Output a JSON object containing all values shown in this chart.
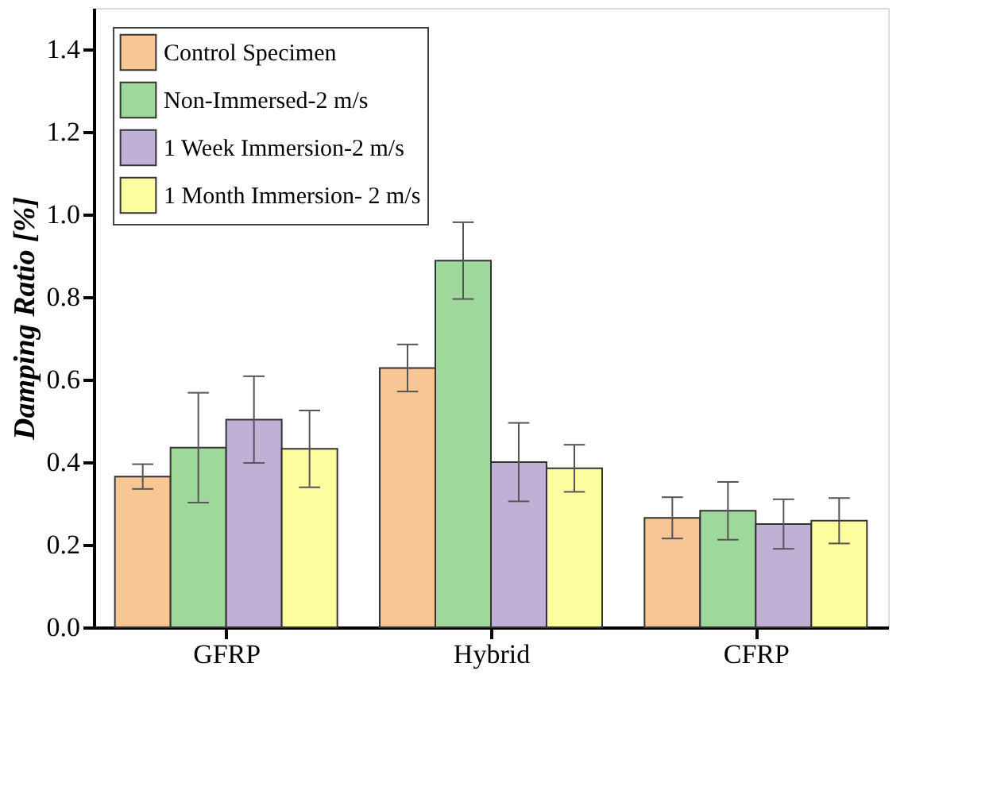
{
  "chart_data": {
    "type": "bar",
    "ylabel": "Damping Ratio [%]",
    "categories": [
      "GFRP",
      "Hybrid",
      "CFRP"
    ],
    "series": [
      {
        "name": "Control Specimen",
        "color": "#f8c594",
        "values": [
          0.365,
          0.628,
          0.265
        ],
        "errors": [
          0.03,
          0.057,
          0.05
        ]
      },
      {
        "name": "Non-Immersed-2 m/s",
        "color": "#9fd89b",
        "values": [
          0.435,
          0.888,
          0.282
        ],
        "errors": [
          0.133,
          0.093,
          0.07
        ]
      },
      {
        "name": "1 Week Immersion-2 m/s",
        "color": "#c0b0d6",
        "values": [
          0.503,
          0.4,
          0.25
        ],
        "errors": [
          0.105,
          0.095,
          0.06
        ]
      },
      {
        "name": "1 Month Immersion- 2 m/s",
        "color": "#fdfda0",
        "values": [
          0.432,
          0.385,
          0.258
        ],
        "errors": [
          0.093,
          0.057,
          0.055
        ]
      }
    ],
    "ylim": [
      0,
      1.5
    ],
    "yticks": [
      {
        "value": 0,
        "label": "0.0"
      },
      0.2,
      0.4,
      0.6,
      0.8,
      {
        "value": 1,
        "label": "1.0"
      },
      1.2,
      1.4
    ],
    "grid": false,
    "legend": "top left"
  }
}
